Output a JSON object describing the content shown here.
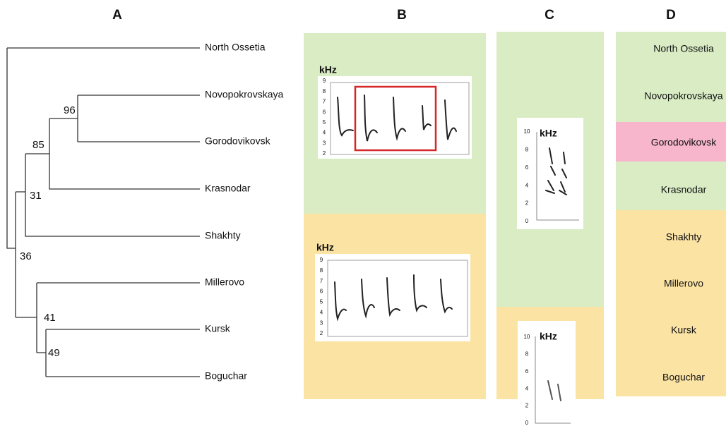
{
  "panels": {
    "a": "A",
    "b": "B",
    "c": "C",
    "d": "D"
  },
  "tree": {
    "leaves": [
      "North Ossetia",
      "Novopokrovskaya",
      "Gorodovikovsk",
      "Krasnodar",
      "Shakhty",
      "Millerovo",
      "Kursk",
      "Boguchar"
    ],
    "support": [
      96,
      85,
      31,
      36,
      41,
      49
    ]
  },
  "spectrograms": [
    {
      "unit": "kHz",
      "ticks": [
        9,
        8,
        7,
        6,
        5,
        4,
        3,
        2
      ]
    },
    {
      "unit": "kHz",
      "ticks": [
        9,
        8,
        7,
        6,
        5,
        4,
        3,
        2
      ]
    },
    {
      "unit": "kHz",
      "ticks": [
        10,
        8,
        6,
        4,
        2,
        0
      ]
    },
    {
      "unit": "kHz",
      "ticks": [
        10,
        8,
        6,
        4,
        2,
        0
      ]
    }
  ],
  "column_d": {
    "rows": [
      "North Ossetia",
      "Novopokrovskaya",
      "Gorodovikovsk",
      "Krasnodar",
      "Shakhty",
      "Millerovo",
      "Kursk",
      "Boguchar"
    ]
  }
}
